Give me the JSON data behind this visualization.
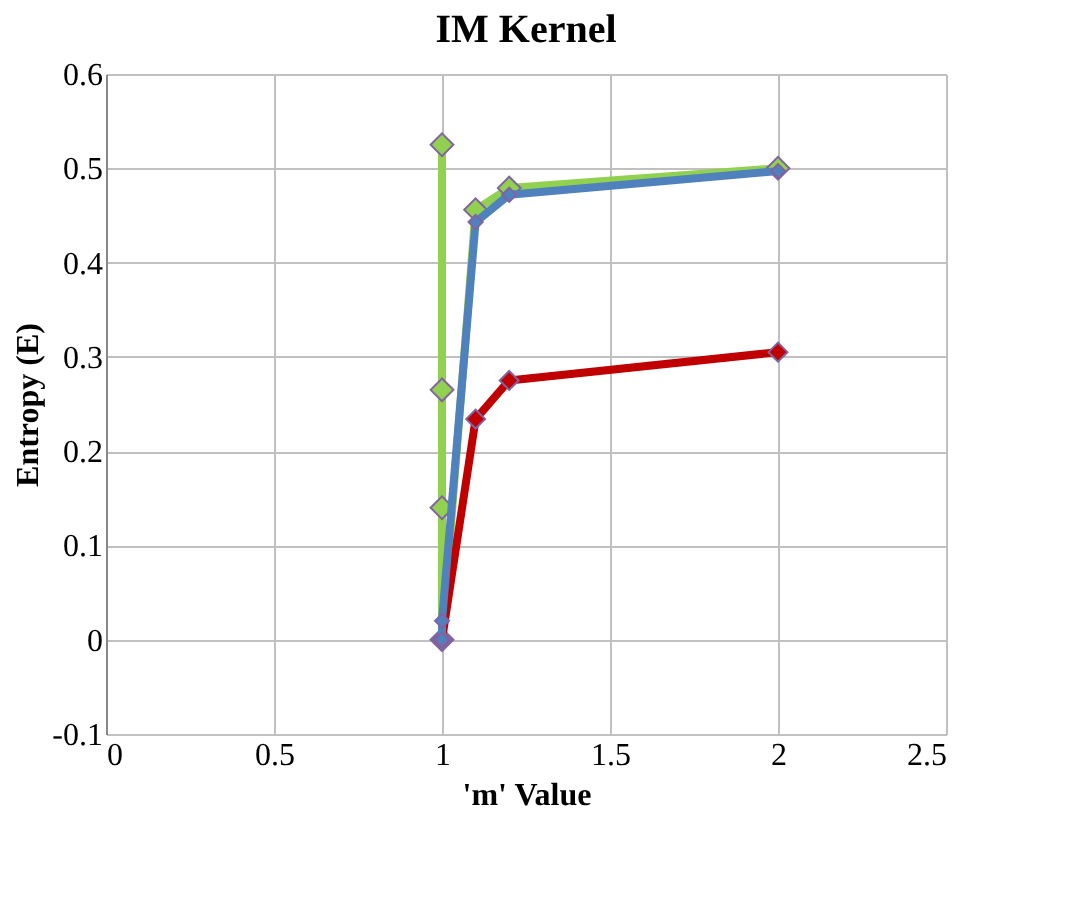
{
  "chart_data": {
    "type": "line",
    "title": "IM Kernel",
    "xlabel": "'m' Value",
    "ylabel": "Entropy (E)",
    "series": [
      {
        "color": "#92d050",
        "x": [
          1,
          1,
          1,
          1,
          1.1,
          1.2,
          2
        ],
        "values": [
          0.525,
          0.265,
          0.14,
          0.0,
          0.456,
          0.479,
          0.5
        ]
      },
      {
        "color": "#c00000",
        "x": [
          1,
          1.1,
          1.2,
          2
        ],
        "values": [
          0.0,
          0.234,
          0.275,
          0.305
        ]
      },
      {
        "color": "#4f81bd",
        "x": [
          1,
          1,
          1.1,
          1.2,
          2
        ],
        "values": [
          0.0,
          0.02,
          0.443,
          0.472,
          0.497
        ]
      }
    ],
    "xlim": [
      0,
      2.5
    ],
    "xticks": [
      0,
      0.5,
      1,
      1.5,
      2,
      2.5
    ],
    "ylim": [
      -0.1,
      0.6
    ],
    "yticks": [
      -0.1,
      0,
      0.1,
      0.2,
      0.3,
      0.4,
      0.5,
      0.6
    ],
    "grid": true,
    "marker": "diamond",
    "line_style": "solid"
  }
}
